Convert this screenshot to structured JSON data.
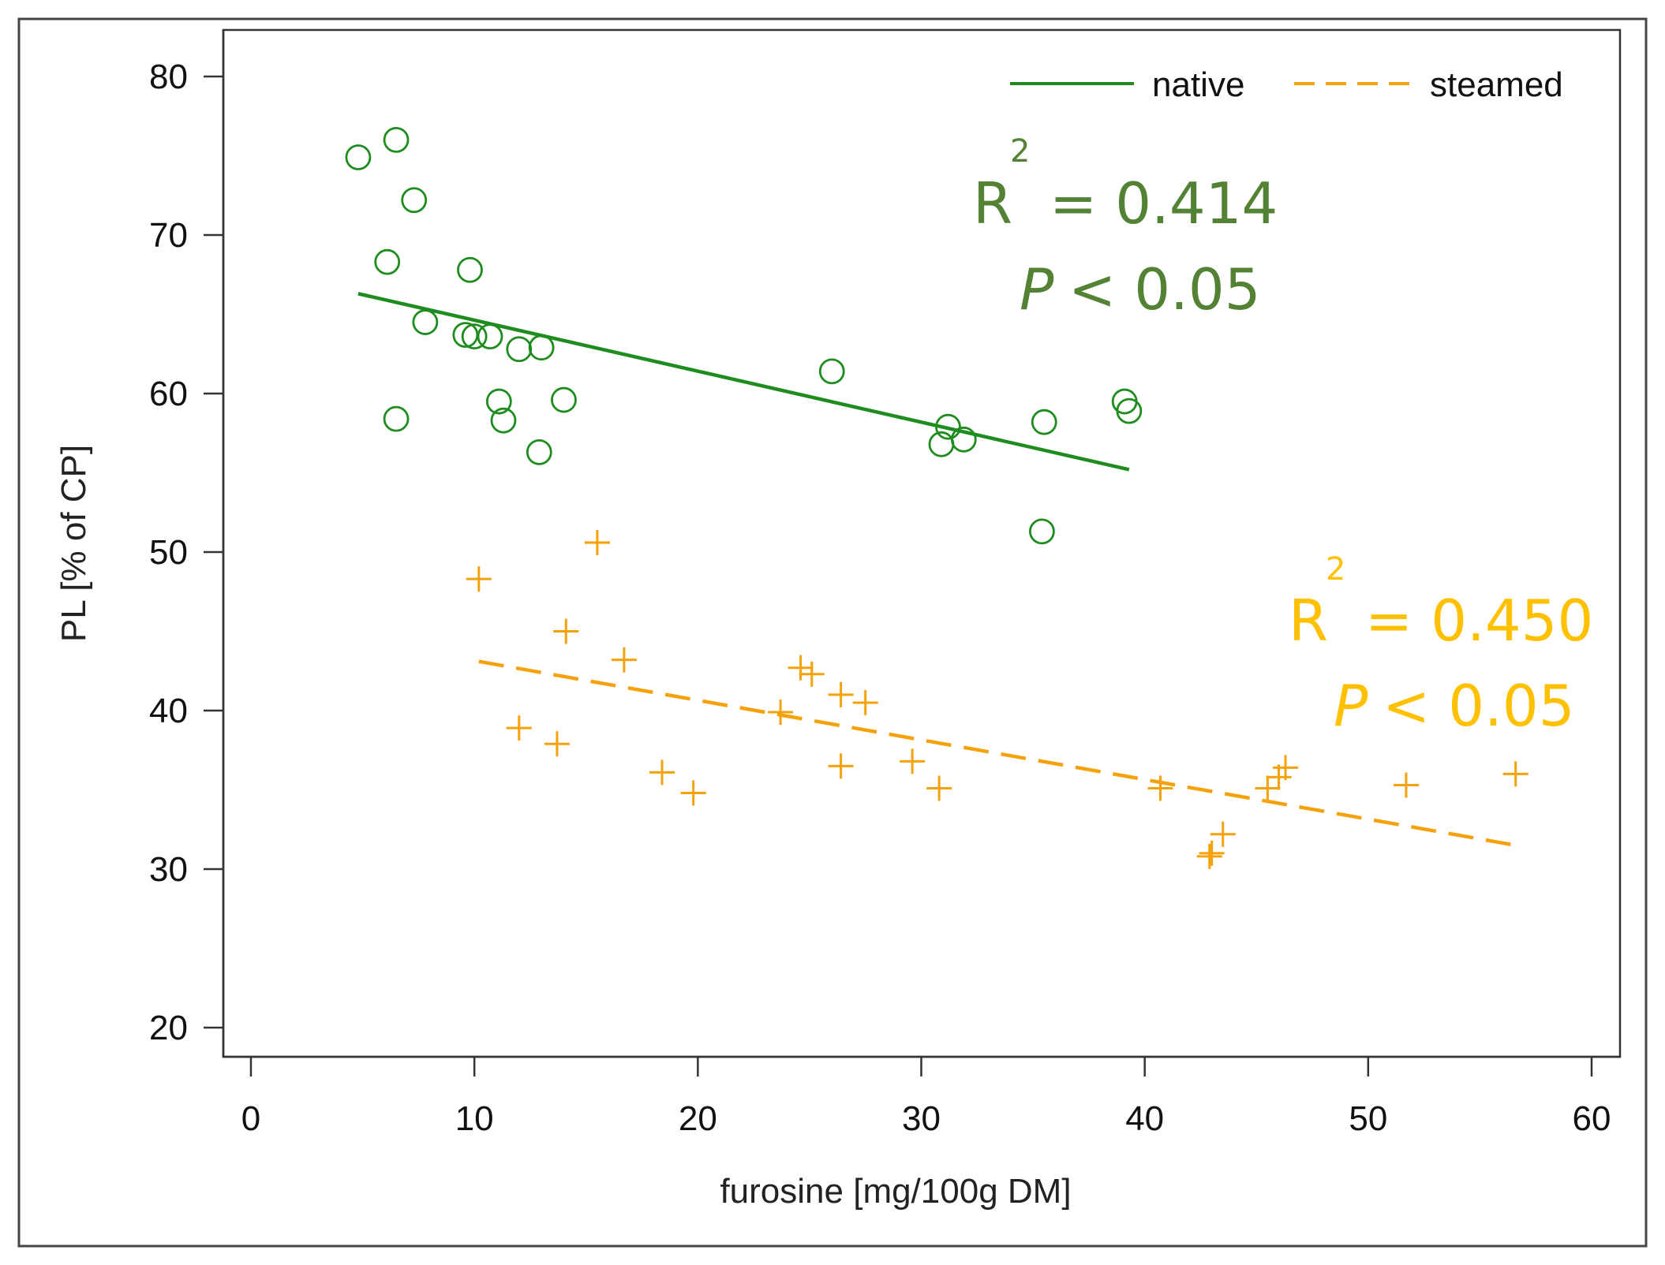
{
  "chart_data": {
    "type": "scatter",
    "title": "",
    "xlabel": "furosine [mg/100g DM]",
    "ylabel": "PL [% of CP]",
    "xlim": [
      0,
      60
    ],
    "ylim": [
      20,
      80
    ],
    "xticks": [
      0,
      10,
      20,
      30,
      40,
      50,
      60
    ],
    "yticks": [
      20,
      30,
      40,
      50,
      60,
      70,
      80
    ],
    "grid": false,
    "legend_position": "top-right",
    "series": [
      {
        "name": "native",
        "marker": "circle",
        "line_style": "solid",
        "color": "#1f8c1f",
        "points": [
          [
            4.8,
            74.9
          ],
          [
            6.5,
            76.0
          ],
          [
            7.3,
            72.2
          ],
          [
            6.1,
            68.3
          ],
          [
            9.8,
            67.8
          ],
          [
            7.8,
            64.5
          ],
          [
            9.6,
            63.7
          ],
          [
            10.0,
            63.6
          ],
          [
            10.7,
            63.6
          ],
          [
            12.0,
            62.8
          ],
          [
            13.0,
            62.9
          ],
          [
            6.5,
            58.4
          ],
          [
            11.1,
            59.5
          ],
          [
            11.3,
            58.3
          ],
          [
            14.0,
            59.6
          ],
          [
            12.9,
            56.3
          ],
          [
            26.0,
            61.4
          ],
          [
            30.9,
            56.8
          ],
          [
            31.2,
            57.9
          ],
          [
            31.9,
            57.1
          ],
          [
            35.5,
            58.2
          ],
          [
            35.4,
            51.3
          ],
          [
            39.1,
            59.5
          ],
          [
            39.3,
            58.9
          ]
        ],
        "fit": {
          "x": [
            4.8,
            39.3
          ],
          "y": [
            66.3,
            55.2
          ]
        }
      },
      {
        "name": "steamed",
        "marker": "plus",
        "line_style": "dashed",
        "color": "#f5a20a",
        "points": [
          [
            10.2,
            48.3
          ],
          [
            15.5,
            50.6
          ],
          [
            14.1,
            45.0
          ],
          [
            16.7,
            43.2
          ],
          [
            12.0,
            38.9
          ],
          [
            13.7,
            37.9
          ],
          [
            18.4,
            36.1
          ],
          [
            19.8,
            34.8
          ],
          [
            23.7,
            39.9
          ],
          [
            24.6,
            42.7
          ],
          [
            25.1,
            42.3
          ],
          [
            26.4,
            41.0
          ],
          [
            27.5,
            40.5
          ],
          [
            26.4,
            36.5
          ],
          [
            29.6,
            36.8
          ],
          [
            30.8,
            35.1
          ],
          [
            40.7,
            35.1
          ],
          [
            42.9,
            30.8
          ],
          [
            43.0,
            31.0
          ],
          [
            43.5,
            32.2
          ],
          [
            45.5,
            35.1
          ],
          [
            46.0,
            35.8
          ],
          [
            46.3,
            36.4
          ],
          [
            51.7,
            35.3
          ],
          [
            56.6,
            36.0
          ]
        ],
        "fit": {
          "x": [
            10.2,
            56.6
          ],
          "y": [
            43.1,
            31.5
          ]
        }
      }
    ],
    "legend": [
      {
        "label": "native",
        "line_style": "solid",
        "color": "#1f8c1f"
      },
      {
        "label": "steamed",
        "line_style": "dashed",
        "color": "#f5a20a"
      }
    ],
    "annotations": [
      {
        "series": "native",
        "color": "#548235",
        "r_label": "R",
        "r_sup": "2",
        "r_value": "= 0.414",
        "p_label": "P",
        "p_value": "< 0.05",
        "anchor": [
          33.8,
          72.0
        ]
      },
      {
        "series": "steamed",
        "color": "#ffc000",
        "r_label": "R",
        "r_sup": "2",
        "r_value": "= 0.450",
        "p_label": "P",
        "p_value": "< 0.05",
        "anchor": [
          47.8,
          45.5
        ]
      }
    ]
  }
}
